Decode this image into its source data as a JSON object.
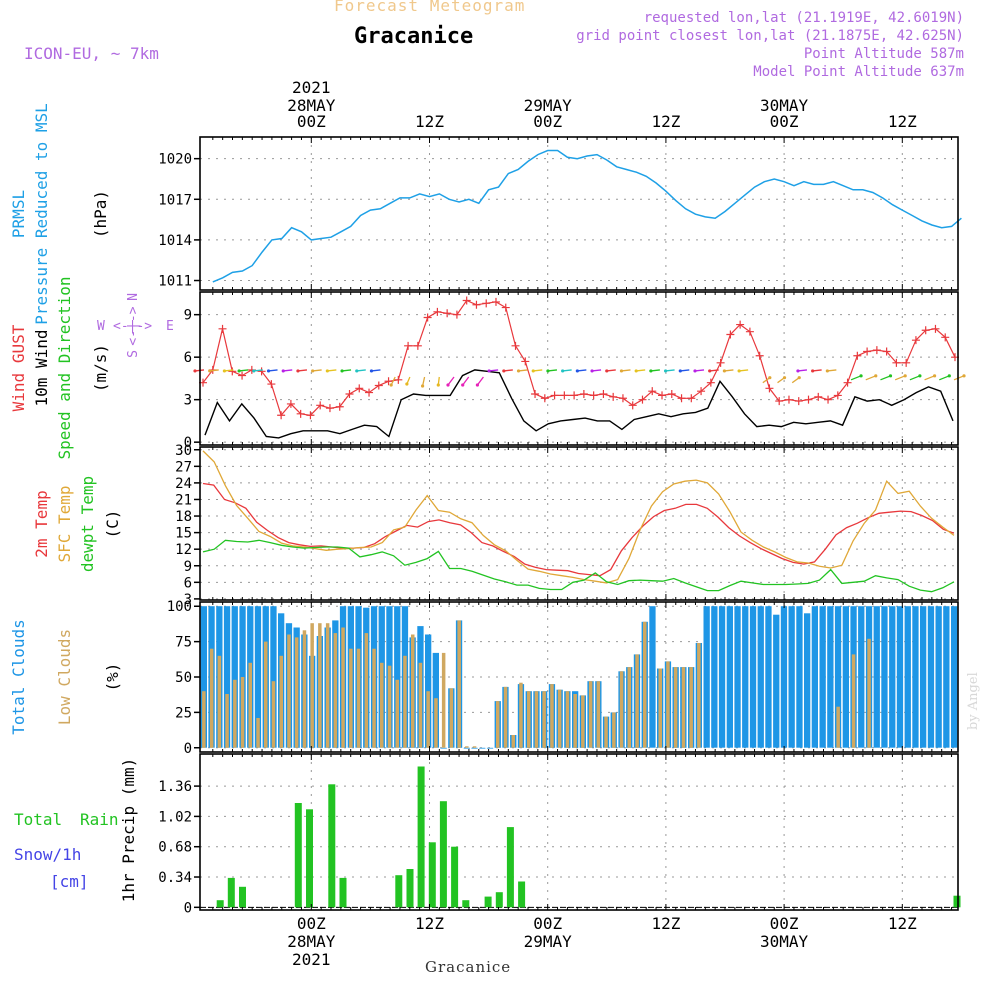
{
  "header": {
    "chart_title": "Forecast Meteogram",
    "location": "Gracanice",
    "model": "ICON-EU, ~ 7km",
    "requested": "requested lon,lat (21.1919E, 42.6019N)",
    "grid_point": "grid point closest lon,lat (21.1875E, 42.625N)",
    "point_altitude": "Point Altitude 587m",
    "model_altitude": "Model Point Altitude 637m",
    "footer_location": "Gracanice",
    "watermark": "by Angel"
  },
  "time_axis": {
    "year": "2021",
    "top_dates": [
      "28MAY",
      "29MAY",
      "30MAY"
    ],
    "bottom_dates": [
      "28MAY",
      "29MAY",
      "30MAY"
    ],
    "ticks": [
      "00Z",
      "12Z",
      "00Z",
      "12Z",
      "00Z",
      "12Z"
    ]
  },
  "colors": {
    "pressure": "#1ea0e6",
    "gust": "#e8383c",
    "wind": "#000000",
    "temp2m": "#e8383c",
    "sfctemp": "#e0a838",
    "dewpt": "#22c322",
    "totalcloud": "#1e96e6",
    "lowcloud": "#d0a860",
    "rain": "#22c322",
    "snow": "#4444e6",
    "header_purple": "#b06ae0",
    "title_orange": "#f0c88c"
  },
  "chart_data": [
    {
      "type": "line",
      "ylabel": "(hPa)",
      "side_labels": [
        "PRMSL",
        "Pressure Reduced to MSL"
      ],
      "ylim": [
        1010.3,
        1021.6
      ],
      "yticks": [
        1011,
        1014,
        1017,
        1020
      ],
      "x_hours": [
        -10,
        -9,
        -8,
        -7,
        -6,
        -5,
        -4,
        -3,
        -2,
        -1,
        0,
        1,
        2,
        3,
        4,
        5,
        6,
        7,
        8,
        9,
        10,
        11,
        12,
        13,
        14,
        15,
        16,
        17,
        18,
        19,
        20,
        21,
        22,
        23,
        24,
        25,
        26,
        27,
        28,
        29,
        30,
        31,
        32,
        33,
        34,
        35,
        36,
        37,
        38,
        39,
        40,
        41,
        42,
        43,
        44,
        45,
        46,
        47,
        48,
        49,
        50,
        51,
        52,
        53,
        54,
        55,
        56,
        57,
        58,
        59,
        60,
        61,
        62,
        63,
        64,
        65,
        66
      ],
      "series": [
        {
          "values": [
            1010.9,
            1011.2,
            1011.6,
            1011.7,
            1012.1,
            1013.1,
            1014.0,
            1014.1,
            1014.9,
            1014.6,
            1014.0,
            1014.1,
            1014.2,
            1014.6,
            1015.0,
            1015.8,
            1016.2,
            1016.3,
            1016.7,
            1017.1,
            1017.1,
            1017.4,
            1017.2,
            1017.4,
            1017.0,
            1016.8,
            1017.0,
            1016.7,
            1017.7,
            1017.9,
            1018.9,
            1019.2,
            1019.8,
            1020.3,
            1020.6,
            1020.6,
            1020.1,
            1020.0,
            1020.2,
            1020.3,
            1019.9,
            1019.4,
            1019.2,
            1019.0,
            1018.7,
            1018.2,
            1017.6,
            1016.9,
            1016.3,
            1015.9,
            1015.7,
            1015.6,
            1016.1,
            1016.7,
            1017.3,
            1017.9,
            1018.3,
            1018.5,
            1018.3,
            1018.0,
            1018.3,
            1018.1,
            1018.1,
            1018.3,
            1018.0,
            1017.7,
            1017.7,
            1017.5,
            1017.1,
            1016.6,
            1016.2,
            1015.8,
            1015.4,
            1015.1,
            1014.9,
            1015.0,
            1015.6
          ]
        }
      ]
    },
    {
      "type": "line",
      "ylabel": "(m/s)",
      "side_labels": [
        "Wind GUST",
        "10m Wind",
        "Speed and Direction"
      ],
      "compass": {
        "w": "W",
        "e": "E",
        "n": "N",
        "s": "S",
        "arrow": "<-|->"
      },
      "ylim": [
        -0.2,
        10.6
      ],
      "yticks": [
        0,
        3,
        6,
        9
      ],
      "series": [
        {
          "name": "Wind GUST",
          "values": [
            4.2,
            5.1,
            8.0,
            5.0,
            4.7,
            5.1,
            5.0,
            4.1,
            1.9,
            2.7,
            2.0,
            1.9,
            2.6,
            2.4,
            2.5,
            3.4,
            3.8,
            3.5,
            4.0,
            4.3,
            4.4,
            6.8,
            6.8,
            8.8,
            9.2,
            9.1,
            9.0,
            10.0,
            9.7,
            9.8,
            9.9,
            9.5,
            6.8,
            5.7,
            3.4,
            3.1,
            3.3,
            3.3,
            3.3,
            3.4,
            3.3,
            3.4,
            3.2,
            3.1,
            2.6,
            3.0,
            3.6,
            3.3,
            3.4,
            3.1,
            3.1,
            3.6,
            4.2,
            5.6,
            7.6,
            8.3,
            7.8,
            6.1,
            3.8,
            2.9,
            3.0,
            2.9,
            3.0,
            3.2,
            3.0,
            3.3,
            4.2,
            6.1,
            6.4,
            6.5,
            6.4,
            5.6,
            5.6,
            7.2,
            7.9,
            8.0,
            7.4,
            6.0
          ]
        },
        {
          "name": "10m Wind",
          "values": [
            0.5,
            2.8,
            1.5,
            2.7,
            1.7,
            0.4,
            0.3,
            0.6,
            0.8,
            0.8,
            0.8,
            0.6,
            0.9,
            1.2,
            1.1,
            0.4,
            3.0,
            3.4,
            3.3,
            3.3,
            3.3,
            4.7,
            5.1,
            5.0,
            4.9,
            3.1,
            1.5,
            0.8,
            1.3,
            1.5,
            1.6,
            1.7,
            1.5,
            1.5,
            0.9,
            1.6,
            1.8,
            2.0,
            1.8,
            2.0,
            2.1,
            2.4,
            4.3,
            3.2,
            2.0,
            1.1,
            1.2,
            1.1,
            1.4,
            1.3,
            1.4,
            1.5,
            1.2,
            3.2,
            2.9,
            3.0,
            2.6,
            3.0,
            3.5,
            3.9,
            3.6,
            1.5
          ]
        }
      ]
    },
    {
      "type": "line",
      "ylabel": "(C)",
      "side_labels": [
        "2m Temp",
        "SFC Temp",
        "dewpt Temp"
      ],
      "ylim": [
        2.8,
        30.5
      ],
      "yticks": [
        3,
        6,
        9,
        12,
        15,
        18,
        21,
        24,
        27,
        30
      ],
      "series": [
        {
          "name": "2m Temp",
          "values": [
            23.9,
            23.6,
            21.0,
            20.4,
            19.4,
            16.9,
            15.4,
            14.1,
            13.2,
            12.8,
            12.5,
            12.6,
            12.4,
            12.2,
            12.2,
            12.3,
            13.0,
            14.3,
            15.3,
            16.3,
            16.0,
            17.0,
            17.3,
            16.8,
            16.4,
            15.0,
            13.2,
            12.6,
            11.6,
            10.7,
            9.3,
            8.7,
            8.3,
            8.2,
            8.1,
            7.6,
            7.4,
            7.2,
            8.3,
            11.7,
            14.1,
            16.2,
            17.9,
            19.0,
            19.4,
            20.1,
            20.1,
            19.4,
            17.8,
            15.9,
            14.4,
            13.2,
            12.1,
            11.2,
            10.3,
            9.6,
            9.3,
            9.7,
            12.0,
            14.6,
            15.9,
            16.7,
            17.7,
            18.5,
            18.7,
            18.9,
            18.8,
            18.1,
            17.2,
            15.6,
            14.9
          ]
        },
        {
          "name": "SFC Temp",
          "values": [
            29.8,
            27.8,
            23.5,
            19.9,
            17.6,
            15.2,
            14.3,
            13.1,
            12.6,
            12.4,
            12.1,
            11.8,
            12.0,
            12.1,
            12.3,
            12.4,
            13.2,
            15.5,
            16.0,
            19.1,
            21.7,
            19.0,
            18.7,
            17.5,
            16.8,
            14.5,
            12.8,
            11.7,
            10.0,
            8.4,
            8.0,
            7.5,
            7.2,
            6.9,
            6.5,
            6.2,
            5.9,
            6.5,
            10.3,
            15.5,
            19.8,
            22.4,
            23.8,
            24.3,
            24.5,
            24.0,
            22.0,
            18.8,
            15.1,
            13.6,
            12.4,
            11.5,
            10.5,
            9.7,
            9.5,
            8.9,
            8.6,
            9.1,
            13.5,
            16.7,
            19.1,
            24.3,
            22.1,
            22.5,
            19.8,
            17.6,
            16.0,
            14.5
          ]
        },
        {
          "name": "dewpt Temp",
          "values": [
            11.5,
            12.0,
            13.6,
            13.4,
            13.3,
            13.6,
            13.2,
            12.7,
            12.4,
            12.2,
            12.3,
            12.4,
            12.4,
            12.2,
            10.6,
            11.0,
            11.5,
            10.8,
            9.1,
            9.6,
            10.3,
            11.6,
            8.5,
            8.5,
            8.0,
            7.3,
            6.6,
            6.1,
            5.5,
            5.5,
            4.9,
            4.7,
            4.7,
            6.0,
            6.4,
            7.7,
            6.1,
            5.6,
            6.3,
            6.4,
            6.3,
            6.2,
            6.7,
            5.9,
            5.2,
            4.5,
            4.5,
            5.4,
            6.2,
            5.9,
            5.6,
            5.6,
            5.6,
            5.7,
            5.8,
            6.4,
            8.3,
            5.8,
            6.0,
            6.2,
            7.2,
            6.8,
            6.5,
            5.3,
            4.6,
            4.3,
            5.0,
            6.1
          ]
        }
      ]
    },
    {
      "type": "bar",
      "ylabel": "(%)",
      "side_labels": [
        "Total Clouds",
        "Low Clouds"
      ],
      "ylim": [
        -3,
        103
      ],
      "yticks": [
        0,
        25,
        50,
        75,
        100
      ],
      "series": [
        {
          "name": "Total Clouds",
          "values": [
            100,
            100,
            100,
            100,
            100,
            100,
            100,
            100,
            100,
            100,
            95,
            88,
            85,
            80,
            65,
            79,
            85,
            90,
            100,
            100,
            100,
            99,
            100,
            100,
            100,
            100,
            100,
            78,
            86,
            80,
            67,
            0,
            42,
            90,
            0,
            0,
            0,
            0,
            33,
            43,
            9,
            45,
            40,
            40,
            40,
            45,
            41,
            40,
            40,
            37,
            47,
            47,
            22,
            25,
            54,
            57,
            66,
            89,
            100,
            56,
            61,
            57,
            57,
            57,
            74,
            100,
            100,
            100,
            100,
            100,
            100,
            100,
            100,
            100,
            94,
            100,
            100,
            100,
            95,
            100,
            100,
            100,
            100,
            100,
            100,
            100,
            100,
            100,
            100,
            100,
            100,
            100,
            100,
            100,
            100,
            100,
            100,
            100
          ]
        },
        {
          "name": "Low Clouds",
          "values": [
            40,
            70,
            65,
            38,
            48,
            50,
            60,
            21,
            75,
            47,
            65,
            80,
            78,
            83,
            88,
            88,
            88,
            81,
            85,
            70,
            70,
            81,
            70,
            60,
            58,
            48,
            65,
            80,
            60,
            40,
            35,
            67,
            42,
            90,
            1,
            1,
            0,
            0,
            33,
            43,
            9,
            46,
            40,
            40,
            40,
            45,
            41,
            40,
            38,
            37,
            47,
            47,
            22,
            25,
            54,
            57,
            66,
            89,
            0,
            56,
            61,
            57,
            57,
            57,
            74,
            0,
            0,
            0,
            0,
            0,
            0,
            0,
            0,
            0,
            0,
            0,
            0,
            0,
            0,
            0,
            0,
            0,
            29,
            0,
            66,
            0,
            77,
            0,
            0,
            0,
            0,
            0,
            0,
            0,
            0,
            0,
            0,
            0,
            1,
            7
          ]
        }
      ]
    },
    {
      "type": "bar",
      "ylabel": "1hr Precip (mm)",
      "side_labels": [
        "Total",
        "Rain",
        "Snow/1h",
        "[cm]"
      ],
      "ylim": [
        -0.03,
        1.72
      ],
      "yticks": [
        0,
        0.34,
        0.68,
        1.02,
        1.36
      ],
      "yticklabels": [
        "0",
        "0.34",
        "0.68",
        "1.02",
        "1.36"
      ],
      "series": [
        {
          "name": "Total Rain",
          "values": [
            0,
            0.08,
            0.33,
            0.23,
            0,
            0,
            0,
            0,
            1.17,
            1.1,
            0,
            1.38,
            0.33,
            0,
            0,
            0,
            0,
            0.36,
            0.43,
            1.58,
            0.73,
            1.19,
            0.68,
            0.08,
            0,
            0.12,
            0.17,
            0.9,
            0.29,
            0,
            0,
            0,
            0,
            0,
            0,
            0,
            0,
            0,
            0,
            0,
            0,
            0,
            0,
            0,
            0,
            0,
            0,
            0,
            0,
            0,
            0,
            0,
            0,
            0,
            0,
            0,
            0,
            0,
            0,
            0,
            0,
            0,
            0,
            0,
            0,
            0,
            0,
            0.13
          ]
        },
        {
          "name": "Snow/1h",
          "values": [
            0,
            0,
            0,
            0,
            0,
            0,
            0,
            0,
            0,
            0,
            0,
            0,
            0,
            0,
            0,
            0,
            0,
            0,
            0,
            0,
            0,
            0,
            0,
            0,
            0,
            0,
            0,
            0,
            0,
            0,
            0,
            0,
            0,
            0,
            0,
            0,
            0,
            0,
            0,
            0,
            0,
            0,
            0,
            0,
            0,
            0,
            0,
            0,
            0,
            0,
            0,
            0,
            0,
            0,
            0,
            0,
            0,
            0,
            0,
            0,
            0,
            0,
            0,
            0,
            0,
            0,
            0,
            0
          ]
        }
      ]
    }
  ]
}
